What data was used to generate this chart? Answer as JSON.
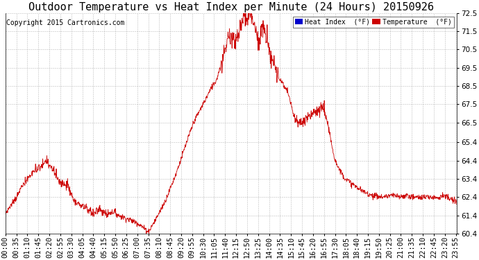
{
  "title": "Outdoor Temperature vs Heat Index per Minute (24 Hours) 20150926",
  "copyright": "Copyright 2015 Cartronics.com",
  "ylim": [
    60.4,
    72.5
  ],
  "yticks": [
    60.4,
    61.4,
    62.4,
    63.4,
    64.4,
    65.4,
    66.5,
    67.5,
    68.5,
    69.5,
    70.5,
    71.5,
    72.5
  ],
  "legend_heat_index_color": "#0000cc",
  "legend_temp_color": "#cc0000",
  "legend_heat_index_label": "Heat Index  (°F)",
  "legend_temp_label": "Temperature  (°F)",
  "line_color": "#cc0000",
  "background_color": "#ffffff",
  "grid_color": "#aaaaaa",
  "title_fontsize": 11,
  "copyright_fontsize": 7,
  "tick_fontsize": 7.5,
  "num_minutes": 1440,
  "x_tick_interval": 35,
  "xtick_labels": [
    "00:00",
    "00:35",
    "01:10",
    "01:45",
    "02:20",
    "02:55",
    "03:30",
    "04:05",
    "04:40",
    "05:15",
    "05:50",
    "06:25",
    "07:00",
    "07:35",
    "08:10",
    "08:45",
    "09:20",
    "09:55",
    "10:30",
    "11:05",
    "11:40",
    "12:15",
    "12:50",
    "13:25",
    "14:00",
    "14:35",
    "15:10",
    "15:45",
    "16:20",
    "16:55",
    "17:30",
    "18:05",
    "18:40",
    "19:15",
    "19:50",
    "20:25",
    "21:00",
    "21:35",
    "22:10",
    "22:45",
    "23:20",
    "23:55"
  ]
}
